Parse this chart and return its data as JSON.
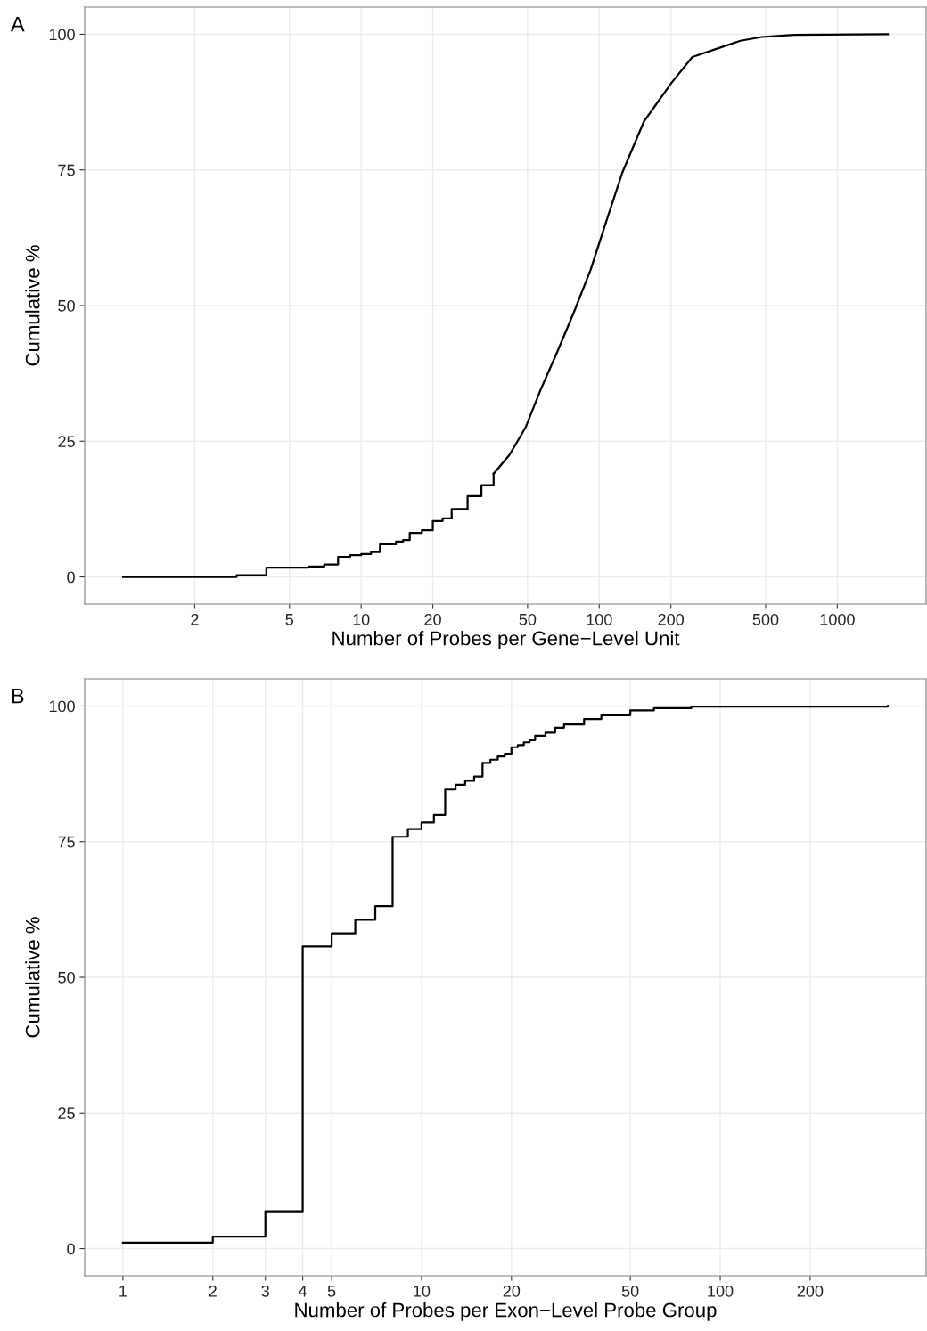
{
  "chart_data": [
    {
      "type": "step",
      "title": "A",
      "xlabel": "Number of Probes per Gene−Level Unit",
      "ylabel": "Cumulative %",
      "log": "x",
      "grid": true,
      "legend": false,
      "xlim": [
        0.69,
        2360
      ],
      "ylim": [
        -5,
        105
      ],
      "xticks": [
        2,
        5,
        10,
        20,
        50,
        100,
        200,
        500,
        1000
      ],
      "yticks": [
        0,
        25,
        50,
        75,
        100
      ],
      "series": [
        {
          "color": "#000000",
          "x": [
            1,
            3,
            4,
            6,
            7,
            8,
            9,
            10,
            11,
            12,
            14,
            15,
            16,
            18,
            20,
            22,
            24,
            28,
            32,
            36
          ],
          "values": [
            0,
            0.3,
            1.7,
            1.9,
            2.3,
            3.7,
            4.0,
            4.2,
            4.6,
            6.0,
            6.5,
            6.8,
            8.1,
            8.6,
            10.3,
            10.8,
            12.5,
            14.9,
            16.9,
            19.0
          ]
        },
        {
          "type": "line",
          "color": "#000000",
          "x": [
            36,
            42,
            49,
            57,
            67,
            78,
            92,
            107,
            125,
            154,
            200,
            246,
            335,
            392,
            482,
            658,
            1630
          ],
          "values": [
            19.0,
            22.5,
            27.5,
            34.7,
            41.7,
            48.6,
            56.6,
            65.5,
            74.5,
            83.9,
            90.9,
            95.8,
            97.8,
            98.8,
            99.5,
            99.9,
            100
          ]
        }
      ]
    },
    {
      "type": "step",
      "title": "B",
      "xlabel": "Number of Probes per Exon−Level Probe Group",
      "ylabel": "Cumulative %",
      "log": "x",
      "grid": true,
      "legend": false,
      "xlim": [
        0.745,
        489
      ],
      "ylim": [
        -5,
        105
      ],
      "xticks": [
        1,
        2,
        3,
        4,
        5,
        10,
        20,
        50,
        100,
        200
      ],
      "yticks": [
        0,
        25,
        50,
        75,
        100
      ],
      "series": [
        {
          "color": "#000000",
          "x": [
            1,
            2,
            3,
            4,
            5,
            6,
            7,
            8,
            9,
            10,
            11,
            12,
            13,
            14,
            15,
            16,
            17,
            18,
            19,
            20,
            21,
            22,
            23,
            24,
            26,
            28,
            30,
            35,
            40,
            50,
            60,
            80,
            364
          ],
          "values": [
            1.1,
            2.2,
            6.9,
            55.7,
            58.1,
            60.6,
            63.1,
            75.9,
            77.3,
            78.5,
            79.9,
            84.6,
            85.5,
            86.2,
            87.0,
            89.5,
            90.1,
            90.7,
            91.2,
            92.4,
            92.8,
            93.3,
            93.7,
            94.5,
            95.1,
            96.0,
            96.6,
            97.6,
            98.3,
            99.2,
            99.6,
            99.9,
            100
          ]
        }
      ]
    }
  ]
}
